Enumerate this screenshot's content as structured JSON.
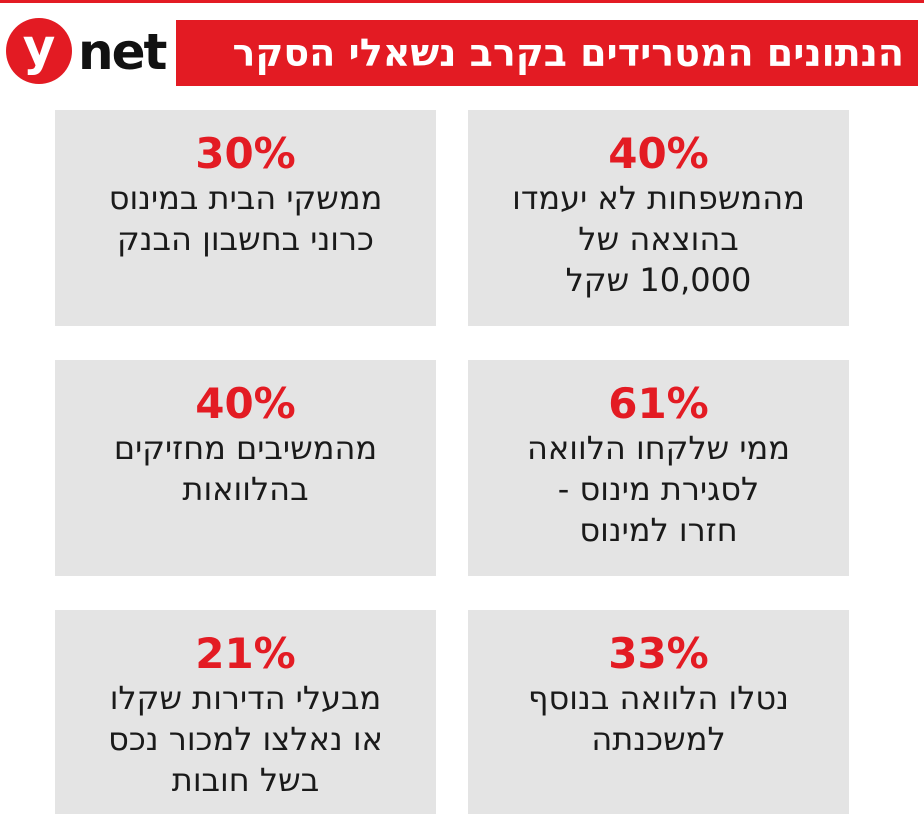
{
  "logo": {
    "letter": "y",
    "word": "net"
  },
  "title": "הנתונים המטרידים בקרב נשאלי הסקר",
  "colors": {
    "accent": "#e31b23",
    "card_bg": "#e4e4e4",
    "text": "#1a1a1a"
  },
  "stats": [
    {
      "value": "40%",
      "lines": [
        "מהמשפחות לא יעמדו",
        "בהוצאה של",
        "10,000 שקל"
      ]
    },
    {
      "value": "30%",
      "lines": [
        "ממשקי הבית במינוס",
        "כרוני בחשבון הבנק"
      ]
    },
    {
      "value": "61%",
      "lines": [
        "ממי שלקחו הלוואה",
        "לסגירת מינוס -",
        "חזרו למינוס"
      ]
    },
    {
      "value": "40%",
      "lines": [
        "מהמשיבים מחזיקים",
        "בהלוואות"
      ]
    },
    {
      "value": "33%",
      "lines": [
        "נטלו הלוואה בנוסף",
        "למשכנתה"
      ]
    },
    {
      "value": "21%",
      "lines": [
        "מבעלי הדירות שקלו",
        "או נאלצו למכור נכס",
        "בשל חובות"
      ]
    }
  ]
}
